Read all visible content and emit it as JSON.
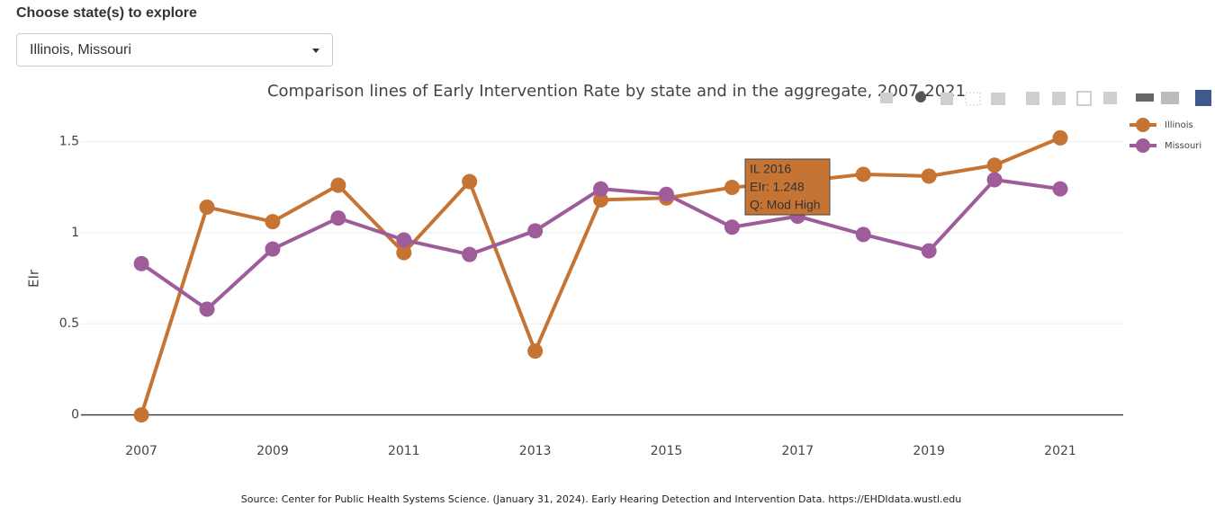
{
  "control": {
    "label": "Choose state(s) to explore",
    "selected": "Illinois, Missouri"
  },
  "chart_data": {
    "type": "line",
    "title": "Comparison lines of Early Intervention Rate by state and in the aggregate, 2007-2021",
    "y_label": "EIr",
    "x": [
      2007,
      2008,
      2009,
      2010,
      2011,
      2012,
      2013,
      2014,
      2015,
      2016,
      2017,
      2018,
      2019,
      2020,
      2021
    ],
    "series": [
      {
        "name": "Illinois",
        "color": "#c67434",
        "values": [
          0,
          1.14,
          1.06,
          1.26,
          0.89,
          1.28,
          0.35,
          1.18,
          1.19,
          1.248,
          1.28,
          1.32,
          1.31,
          1.37,
          1.52
        ]
      },
      {
        "name": "Missouri",
        "color": "#9e5d9a",
        "values": [
          0.83,
          0.58,
          0.91,
          1.08,
          0.96,
          0.88,
          1.01,
          1.24,
          1.21,
          1.03,
          1.09,
          0.99,
          0.9,
          1.29,
          1.24
        ]
      }
    ],
    "xlim": [
      2006.08,
      2021.96
    ],
    "xticks": [
      2007,
      2009,
      2011,
      2013,
      2015,
      2017,
      2019,
      2021
    ],
    "ylim": [
      -0.13,
      1.66
    ],
    "yticks": [
      0,
      0.5,
      1,
      1.5
    ],
    "grid": true,
    "legend": "top-right",
    "tooltip": [
      "IL 2016",
      "EIr: 1.248",
      "Q: Mod High"
    ],
    "source": "Source: Center for Public Health Systems Science. (January 31, 2024). Early Hearing Detection and Intervention Data. https://EHDIdata.wustl.edu"
  }
}
